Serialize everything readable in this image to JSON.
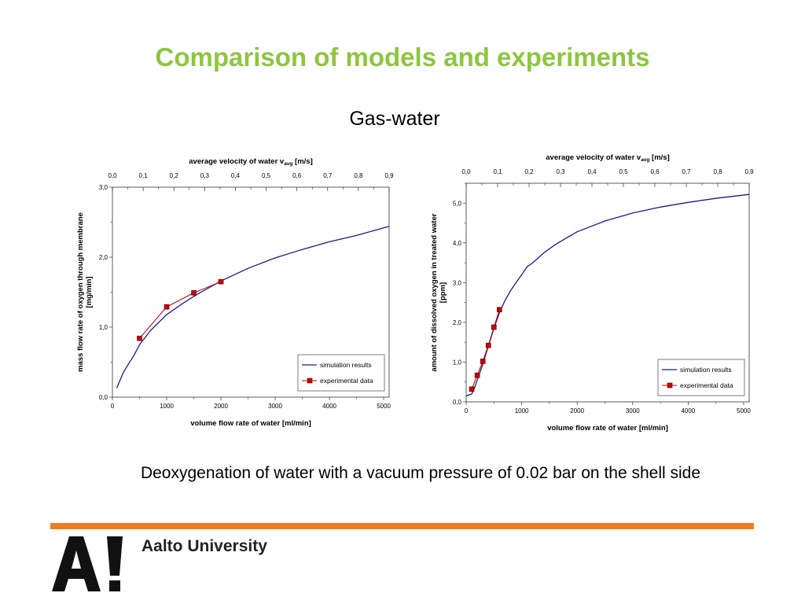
{
  "slide": {
    "title": "Comparison of models and experiments",
    "subtitle": "Gas-water",
    "caption": "Deoxygenation of water with a vacuum pressure of 0.02 bar on the shell side",
    "org_name": "Aalto University",
    "logo_text": "A!",
    "colors": {
      "title": "#8dc63f",
      "rule": "#f47c20",
      "simulation": "#1a1a8c",
      "experimental": "#cc0000",
      "marker": "#cc0000"
    }
  },
  "chart_data": [
    {
      "type": "line",
      "top_axis_label": "average velocity of water v",
      "top_axis_sub": "avg",
      "top_axis_unit": "[m/s]",
      "top_ticks": [
        "0,0",
        "0,1",
        "0,2",
        "0,3",
        "0,4",
        "0,5",
        "0,6",
        "0,7",
        "0,8",
        "0,9"
      ],
      "top_xlim": [
        0,
        0.9
      ],
      "xlabel": "volume flow rate of water [ml/min]",
      "ylabel_line1": "mass flow rate of oxygen through membrane",
      "ylabel_line2": "[mg/min]",
      "x_ticks": [
        "0",
        "1000",
        "2000",
        "3000",
        "4000",
        "5000"
      ],
      "x_tick_values": [
        0,
        1000,
        2000,
        3000,
        4000,
        5000
      ],
      "y_ticks": [
        "0,0",
        "1,0",
        "2,0",
        "3,0"
      ],
      "y_tick_values": [
        0,
        1,
        2,
        3
      ],
      "xlim": [
        0,
        5100
      ],
      "ylim": [
        0,
        3.0
      ],
      "legend": {
        "position": "bottom-right"
      },
      "series": [
        {
          "name": "simulation results",
          "x": [
            80,
            200,
            300,
            400,
            500,
            700,
            1000,
            1300,
            1500,
            2000,
            2500,
            3000,
            3500,
            4000,
            4500,
            5100
          ],
          "y": [
            0.13,
            0.35,
            0.48,
            0.6,
            0.75,
            0.95,
            1.18,
            1.34,
            1.44,
            1.66,
            1.84,
            1.99,
            2.11,
            2.22,
            2.31,
            2.44
          ]
        },
        {
          "name": "experimental data",
          "x": [
            500,
            1000,
            1500,
            2000
          ],
          "y": [
            0.84,
            1.29,
            1.49,
            1.65
          ]
        }
      ]
    },
    {
      "type": "line",
      "top_axis_label": "average velocity of water v",
      "top_axis_sub": "avg",
      "top_axis_unit": "[m/s]",
      "top_ticks": [
        "0,0",
        "0,1",
        "0,2",
        "0,3",
        "0,4",
        "0,5",
        "0,6",
        "0,7",
        "0,8",
        "0,9"
      ],
      "top_xlim": [
        0,
        0.9
      ],
      "xlabel": "volume flow rate of water [ml/min]",
      "ylabel_line1": "amount of dissolved oxygen in treated water",
      "ylabel_line2": "[ppm]",
      "x_ticks": [
        "0",
        "1000",
        "2000",
        "3000",
        "4000",
        "5000"
      ],
      "x_tick_values": [
        0,
        1000,
        2000,
        3000,
        4000,
        5000
      ],
      "y_ticks": [
        "0,0",
        "1,0",
        "2,0",
        "3,0",
        "4,0",
        "5,0"
      ],
      "y_tick_values": [
        0,
        1,
        2,
        3,
        4,
        5
      ],
      "xlim": [
        0,
        5100
      ],
      "ylim": [
        0,
        5.5
      ],
      "legend": {
        "position": "bottom-right"
      },
      "series": [
        {
          "name": "simulation results",
          "x": [
            0,
            100,
            150,
            200,
            300,
            400,
            500,
            600,
            700,
            800,
            900,
            1000,
            1100,
            1200,
            1400,
            1600,
            1800,
            2000,
            2500,
            3000,
            3500,
            4000,
            4500,
            5100
          ],
          "y": [
            0.15,
            0.2,
            0.35,
            0.55,
            0.95,
            1.4,
            1.85,
            2.25,
            2.55,
            2.8,
            3.0,
            3.2,
            3.4,
            3.5,
            3.75,
            3.95,
            4.12,
            4.28,
            4.55,
            4.75,
            4.9,
            5.02,
            5.12,
            5.22
          ]
        },
        {
          "name": "experimental data",
          "x": [
            100,
            200,
            300,
            400,
            500,
            600
          ],
          "y": [
            0.32,
            0.67,
            1.02,
            1.42,
            1.88,
            2.32
          ]
        }
      ]
    }
  ]
}
